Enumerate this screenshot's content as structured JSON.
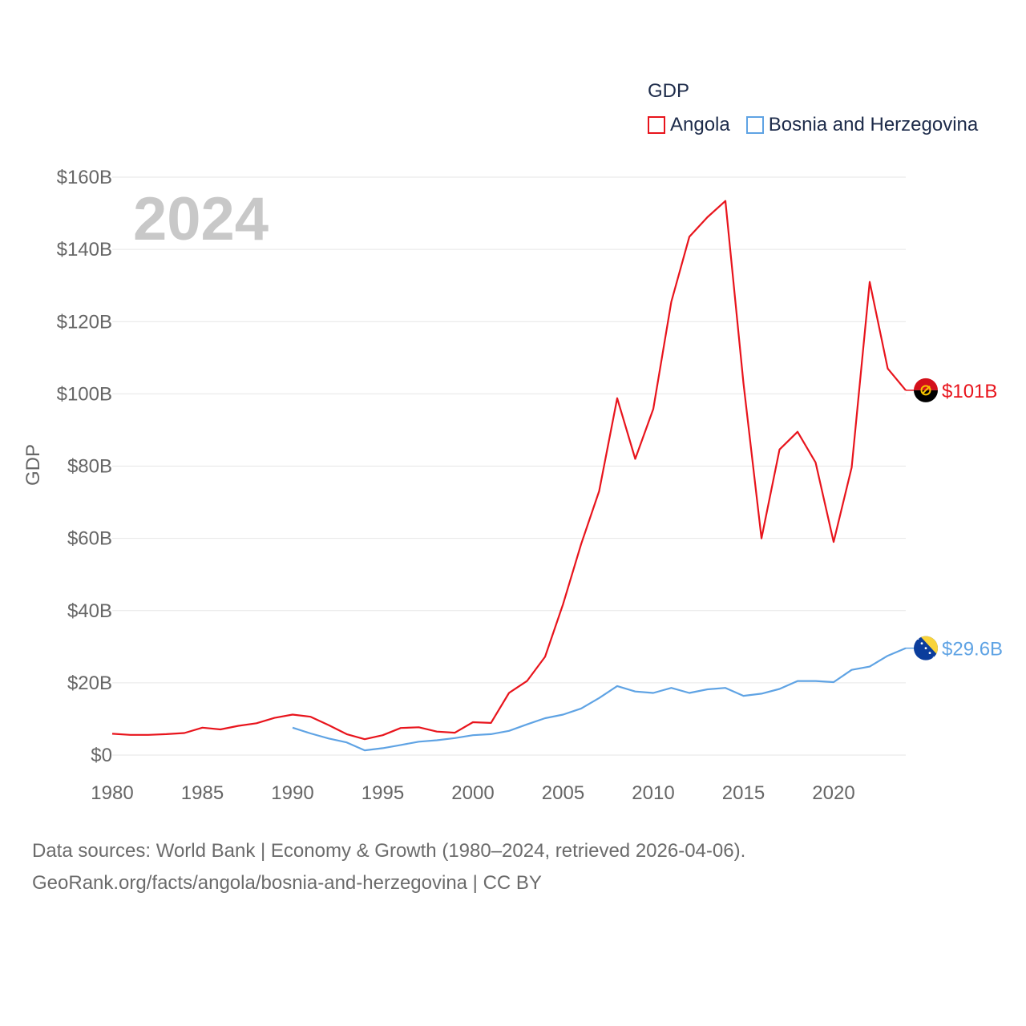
{
  "chart_data": {
    "type": "line",
    "legend_title": "GDP",
    "ylabel": "GDP",
    "year_label": "2024",
    "ylim": [
      0,
      160
    ],
    "yticks": [
      0,
      20,
      40,
      60,
      80,
      100,
      120,
      140,
      160
    ],
    "ytick_labels": [
      "$0",
      "$20B",
      "$40B",
      "$60B",
      "$80B",
      "$100B",
      "$120B",
      "$140B",
      "$160B"
    ],
    "xlim": [
      1980,
      2024
    ],
    "xticks": [
      1980,
      1985,
      1990,
      1995,
      2000,
      2005,
      2010,
      2015,
      2020
    ],
    "xtick_labels": [
      "1980",
      "1985",
      "1990",
      "1995",
      "2000",
      "2005",
      "2010",
      "2015",
      "2020"
    ],
    "legend_position": "top-right",
    "grid": true,
    "series": [
      {
        "name": "Angola",
        "color": "#e8141c",
        "flag": "angola-flag-icon",
        "end_label": "$101B",
        "x": [
          1980,
          1981,
          1982,
          1983,
          1984,
          1985,
          1986,
          1987,
          1988,
          1989,
          1990,
          1991,
          1992,
          1993,
          1994,
          1995,
          1996,
          1997,
          1998,
          1999,
          2000,
          2001,
          2002,
          2003,
          2004,
          2005,
          2006,
          2007,
          2008,
          2009,
          2010,
          2011,
          2012,
          2013,
          2014,
          2015,
          2016,
          2017,
          2018,
          2019,
          2020,
          2021,
          2022,
          2023,
          2024
        ],
        "values": [
          5.9,
          5.6,
          5.6,
          5.8,
          6.1,
          7.6,
          7.1,
          8.1,
          8.8,
          10.3,
          11.2,
          10.6,
          8.3,
          5.8,
          4.4,
          5.5,
          7.5,
          7.7,
          6.5,
          6.2,
          9.1,
          8.9,
          17.2,
          20.5,
          27.2,
          41.8,
          58.4,
          73.1,
          98.8,
          82.0,
          95.8,
          125.5,
          143.5,
          148.9,
          153.4,
          103.0,
          60.0,
          84.6,
          89.5,
          81.0,
          59.0,
          79.6,
          131.0,
          107.0,
          101.0
        ]
      },
      {
        "name": "Bosnia and Herzegovina",
        "color": "#5fa3e4",
        "flag": "bosnia-flag-icon",
        "end_label": "$29.6B",
        "x": [
          1990,
          1991,
          1992,
          1993,
          1994,
          1995,
          1996,
          1997,
          1998,
          1999,
          2000,
          2001,
          2002,
          2003,
          2004,
          2005,
          2006,
          2007,
          2008,
          2009,
          2010,
          2011,
          2012,
          2013,
          2014,
          2015,
          2016,
          2017,
          2018,
          2019,
          2020,
          2021,
          2022,
          2023,
          2024
        ],
        "values": [
          7.6,
          6.0,
          4.6,
          3.5,
          1.3,
          1.9,
          2.8,
          3.7,
          4.1,
          4.7,
          5.5,
          5.8,
          6.7,
          8.5,
          10.2,
          11.2,
          12.9,
          15.8,
          19.1,
          17.6,
          17.2,
          18.6,
          17.2,
          18.2,
          18.6,
          16.4,
          17.0,
          18.3,
          20.5,
          20.5,
          20.2,
          23.6,
          24.5,
          27.5,
          29.6
        ]
      }
    ]
  },
  "source_lines": [
    "Data sources: World Bank | Economy & Growth (1980–2024, retrieved 2026-04-06).",
    "GeoRank.org/facts/angola/bosnia-and-herzegovina | CC BY"
  ]
}
